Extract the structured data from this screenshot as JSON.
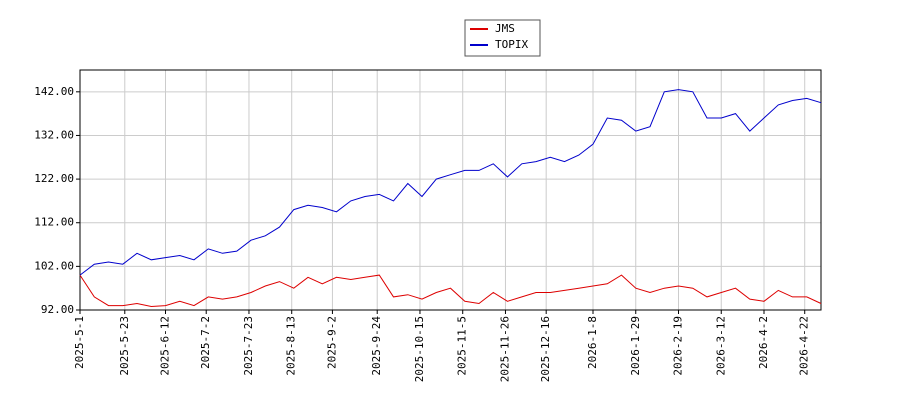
{
  "chart_data": {
    "type": "line",
    "x": [
      "2025-5-1",
      "2025-5-8",
      "2025-5-15",
      "2025-5-22",
      "2025-5-29",
      "2025-6-5",
      "2025-6-12",
      "2025-6-19",
      "2025-6-26",
      "2025-7-3",
      "2025-7-10",
      "2025-7-17",
      "2025-7-24",
      "2025-7-31",
      "2025-8-7",
      "2025-8-14",
      "2025-8-21",
      "2025-8-28",
      "2025-9-4",
      "2025-9-11",
      "2025-9-18",
      "2025-9-25",
      "2025-10-2",
      "2025-10-9",
      "2025-10-16",
      "2025-10-23",
      "2025-10-30",
      "2025-11-6",
      "2025-11-13",
      "2025-11-20",
      "2025-11-27",
      "2025-12-4",
      "2025-12-11",
      "2025-12-18",
      "2025-12-25",
      "2026-1-1",
      "2026-1-8",
      "2026-1-15",
      "2026-1-22",
      "2026-1-29",
      "2026-2-5",
      "2026-2-12",
      "2026-2-19",
      "2026-2-26",
      "2026-3-5",
      "2026-3-12",
      "2026-3-19",
      "2026-3-26",
      "2026-4-2",
      "2026-4-9",
      "2026-4-16",
      "2026-4-23",
      "2026-4-30"
    ],
    "series": [
      {
        "name": "JMS",
        "color": "#dd0000",
        "values": [
          100,
          95,
          93,
          93,
          93.5,
          92.8,
          93,
          94,
          93,
          95,
          94.5,
          95,
          96,
          97.5,
          98.5,
          97,
          99.5,
          98,
          99.5,
          99,
          99.5,
          100,
          95,
          95.5,
          94.5,
          96,
          97,
          94,
          93.5,
          96,
          94,
          95,
          96,
          96,
          96.5,
          97,
          97.5,
          98,
          100,
          97,
          96,
          97,
          97.5,
          97,
          95,
          96,
          97,
          94.5,
          94,
          96.5,
          95,
          95,
          93.5
        ]
      },
      {
        "name": "TOPIX",
        "color": "#0000cc",
        "values": [
          100,
          102.5,
          103,
          102.5,
          105,
          103.5,
          104,
          104.5,
          103.5,
          106,
          105,
          105.5,
          108,
          109,
          111,
          115,
          116,
          115.5,
          114.5,
          117,
          118,
          118.5,
          117,
          121,
          118,
          122,
          123,
          124,
          124,
          125.5,
          122.5,
          125.5,
          126,
          127,
          126,
          127.5,
          130,
          136,
          135.5,
          133,
          134,
          142,
          142.5,
          142,
          136,
          136,
          137,
          133,
          136,
          139,
          140,
          140.5,
          139.5
        ]
      }
    ],
    "xlim": [
      "2025-5-1",
      "2026-4-30"
    ],
    "xticks": [
      "2025-5-1",
      "2025-5-23",
      "2025-6-12",
      "2025-7-2",
      "2025-7-23",
      "2025-8-13",
      "2025-9-2",
      "2025-9-24",
      "2025-10-15",
      "2025-11-5",
      "2025-11-26",
      "2025-12-16",
      "2026-1-8",
      "2026-1-29",
      "2026-2-19",
      "2026-3-12",
      "2026-4-2",
      "2026-4-22"
    ],
    "ylim": [
      92,
      147
    ],
    "yticks": [
      {
        "value": 92,
        "label": "92.00"
      },
      {
        "value": 102,
        "label": "102.00"
      },
      {
        "value": 112,
        "label": "112.00"
      },
      {
        "value": 122,
        "label": "122.00"
      },
      {
        "value": 132,
        "label": "132.00"
      },
      {
        "value": 142,
        "label": "142.00"
      }
    ],
    "grid": true
  }
}
